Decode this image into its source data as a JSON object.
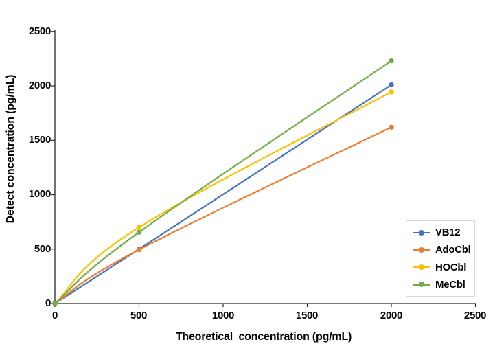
{
  "chart_data": {
    "type": "line",
    "line_style": "smooth",
    "markers": true,
    "grid": false,
    "title": "",
    "xlabel": "Theoretical  concentration (pg/mL)",
    "ylabel": "Detect concentration (pg/mL)",
    "xlim": [
      0,
      2500
    ],
    "ylim": [
      0,
      2500
    ],
    "x_ticks": [
      "0",
      "500",
      "1000",
      "1500",
      "2000",
      "2500"
    ],
    "y_ticks": [
      "0",
      "500",
      "1000",
      "1500",
      "2000",
      "2500"
    ],
    "x": [
      0,
      500,
      2000
    ],
    "series": [
      {
        "name": "VB12",
        "color": "#4472C4",
        "values": [
          0,
          500,
          2010
        ]
      },
      {
        "name": "AdoCbl",
        "color": "#ED7D31",
        "values": [
          0,
          495,
          1620
        ]
      },
      {
        "name": "HOCbl",
        "color": "#FFC000",
        "values": [
          0,
          700,
          1945
        ]
      },
      {
        "name": "MeCbl",
        "color": "#70AD47",
        "values": [
          0,
          655,
          2230
        ]
      }
    ],
    "legend_position": "middle-right",
    "legend_border_color": "#D9D9D9",
    "axis_color": "#262626",
    "background_color": "#FFFFFF"
  }
}
